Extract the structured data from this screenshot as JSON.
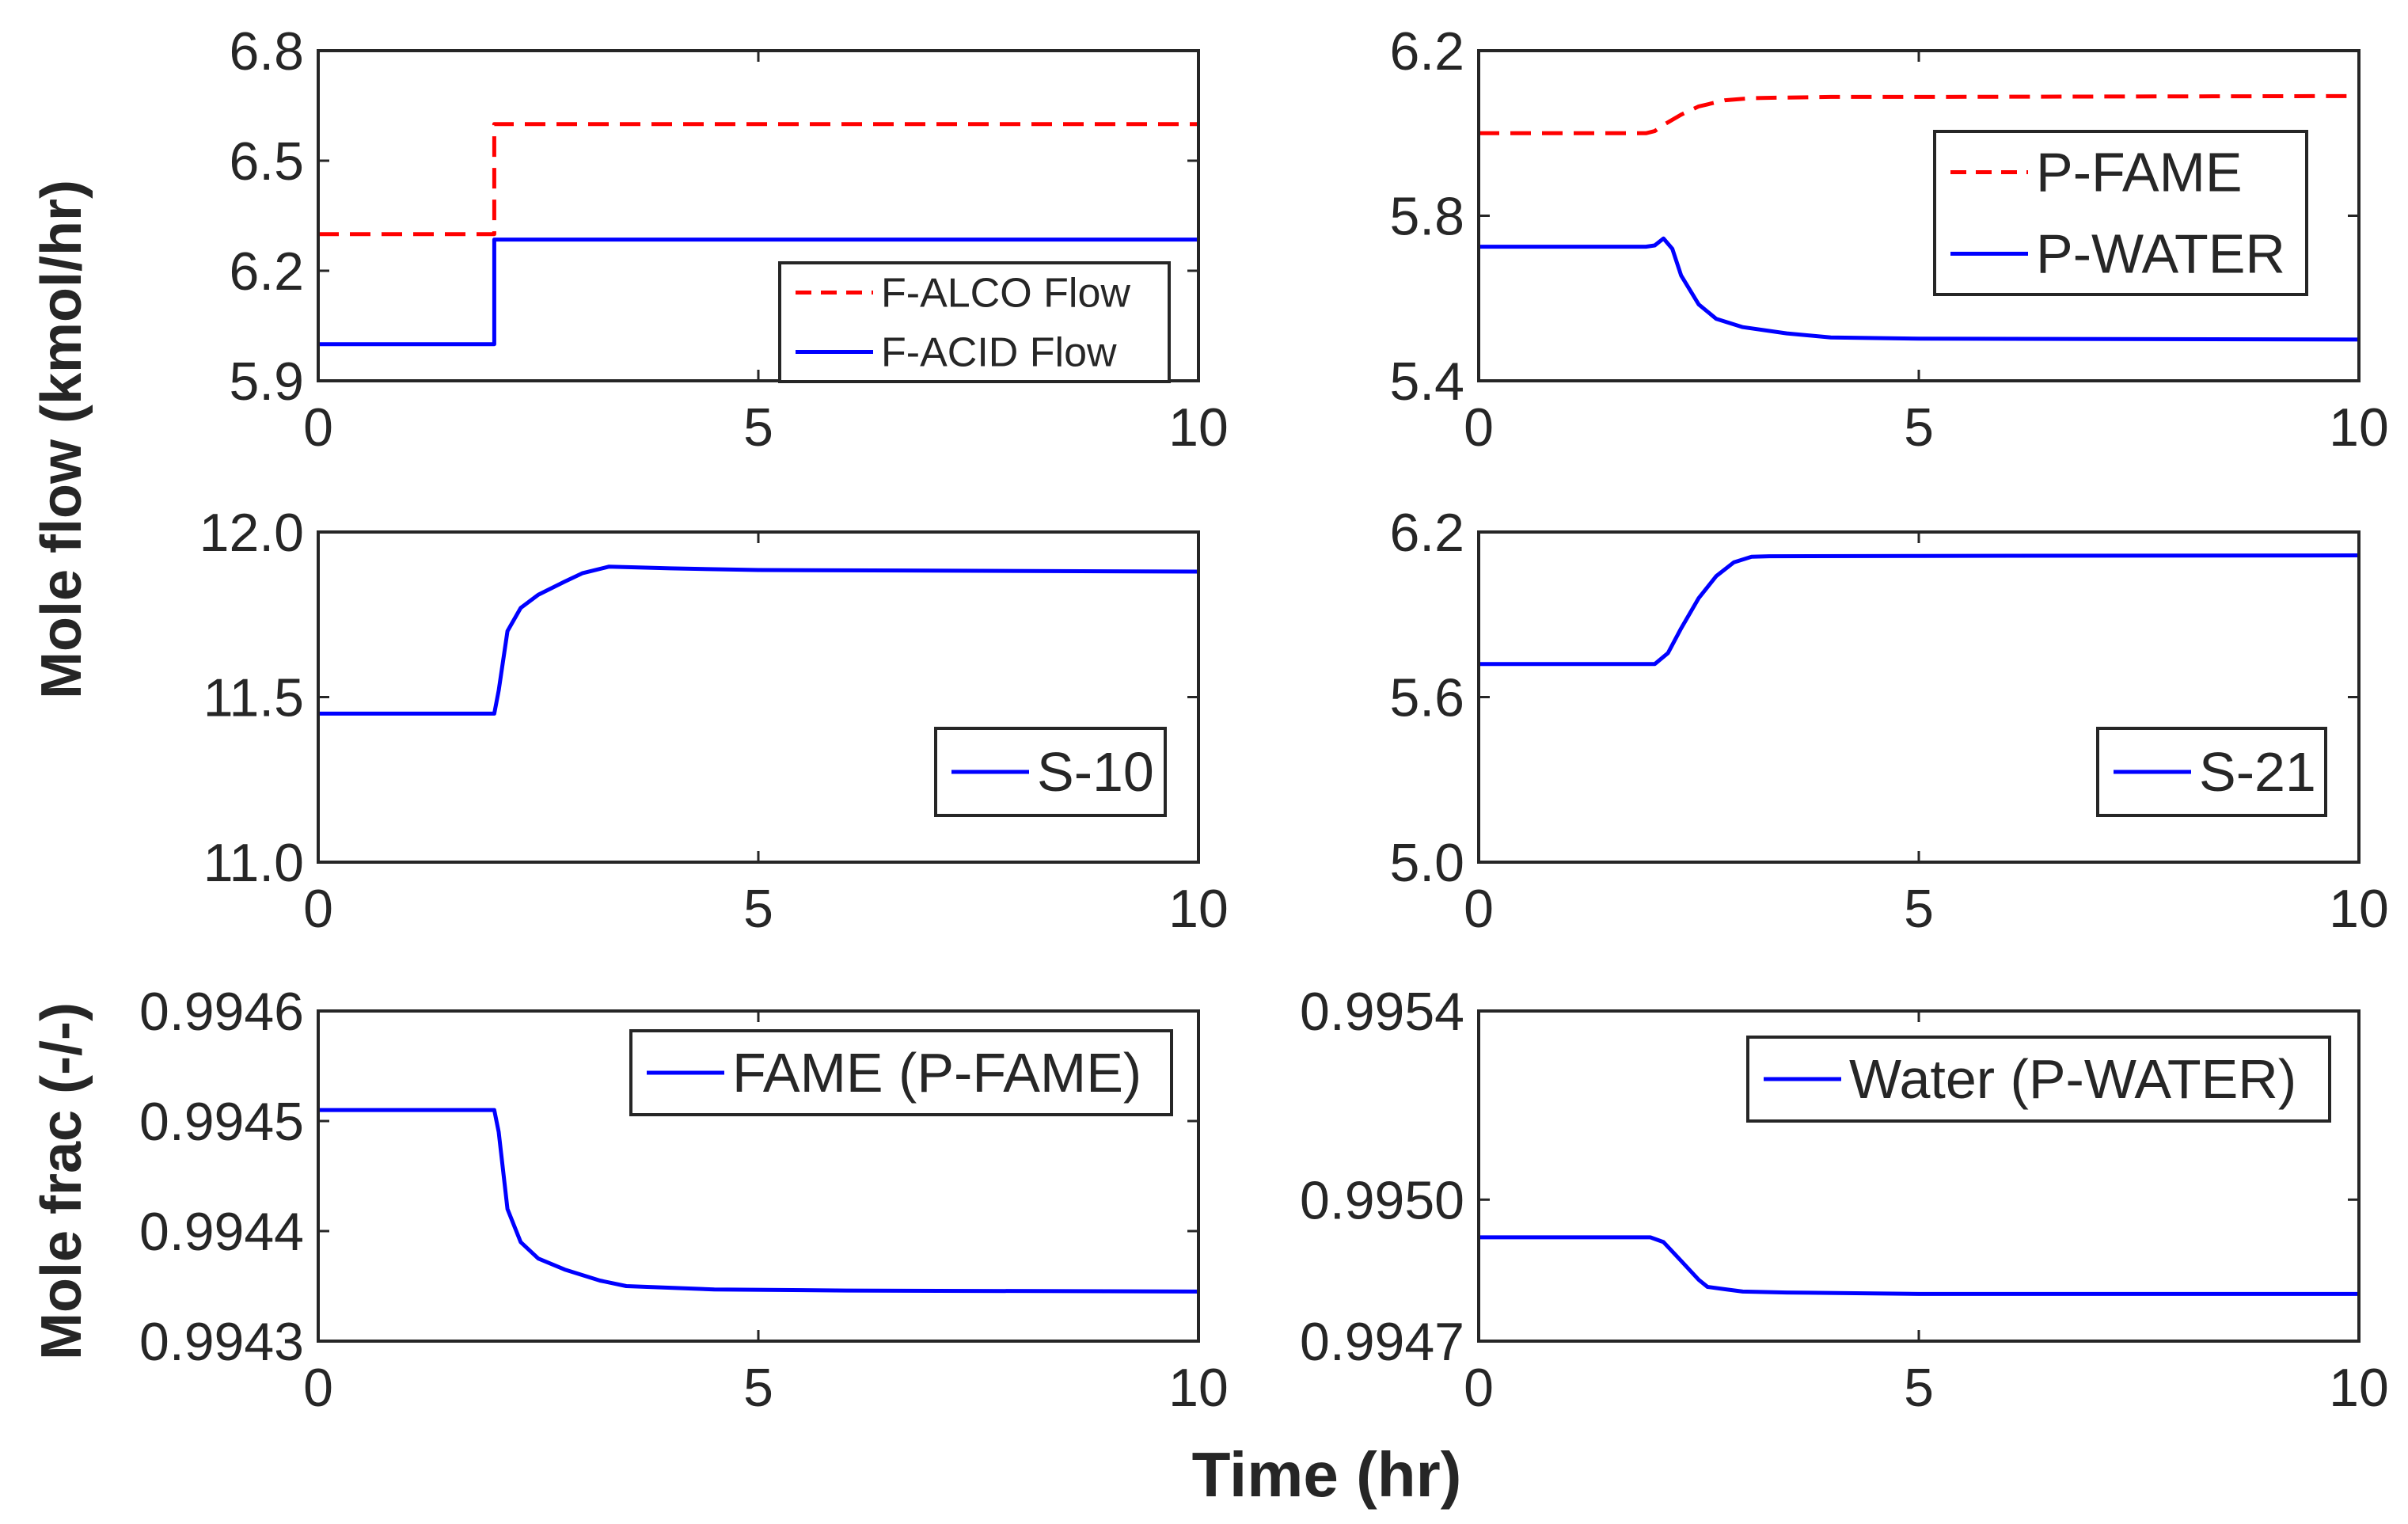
{
  "figure": {
    "ylabel_flow": "Mole flow (kmol/hr)",
    "ylabel_frac": "Mole frac (-/-)",
    "xlabel": "Time (hr)"
  },
  "colors": {
    "red": "#ff0000",
    "blue": "#0000ff",
    "axis": "#262626"
  },
  "chart_data": [
    {
      "type": "line",
      "panel": "top-left",
      "xlim": [
        0,
        10
      ],
      "ylim": [
        5.9,
        6.8
      ],
      "xticks": [
        0,
        5,
        10
      ],
      "xtick_labels": [
        "0",
        "5",
        "10"
      ],
      "yticks": [
        5.9,
        6.2,
        6.5,
        6.8
      ],
      "ytick_labels": [
        "5.9",
        "6.2",
        "6.5",
        "6.8"
      ],
      "legend_location": "bottom-right",
      "series": [
        {
          "name": "F-ALCO Flow",
          "color": "#ff0000",
          "style": "dashed",
          "x": [
            0,
            2,
            2,
            10
          ],
          "y": [
            6.3,
            6.3,
            6.6,
            6.6
          ]
        },
        {
          "name": "F-ACID Flow",
          "color": "#0000ff",
          "style": "solid",
          "x": [
            0,
            2,
            2,
            10
          ],
          "y": [
            6.0,
            6.0,
            6.285,
            6.285
          ]
        }
      ]
    },
    {
      "type": "line",
      "panel": "top-right",
      "xlim": [
        0,
        10
      ],
      "ylim": [
        5.4,
        6.2
      ],
      "xticks": [
        0,
        5,
        10
      ],
      "xtick_labels": [
        "0",
        "5",
        "10"
      ],
      "yticks": [
        5.4,
        5.8,
        6.2
      ],
      "ytick_labels": [
        "5.4",
        "5.8",
        "6.2"
      ],
      "legend_location": "right",
      "series": [
        {
          "name": "P-FAME",
          "color": "#ff0000",
          "style": "dashed",
          "x": [
            0,
            1.9,
            2.0,
            2.1,
            2.3,
            2.5,
            2.8,
            3.1,
            4,
            5,
            10
          ],
          "y": [
            6.0,
            6.0,
            6.005,
            6.02,
            6.045,
            6.065,
            6.08,
            6.085,
            6.088,
            6.088,
            6.09
          ]
        },
        {
          "name": "P-WATER",
          "color": "#0000ff",
          "style": "solid",
          "x": [
            0,
            1.9,
            2.0,
            2.1,
            2.2,
            2.3,
            2.5,
            2.7,
            3.0,
            3.5,
            4.0,
            5.0,
            10
          ],
          "y": [
            5.725,
            5.725,
            5.728,
            5.745,
            5.72,
            5.655,
            5.585,
            5.55,
            5.53,
            5.515,
            5.505,
            5.502,
            5.5
          ]
        }
      ]
    },
    {
      "type": "line",
      "panel": "middle-left",
      "xlim": [
        0,
        10
      ],
      "ylim": [
        11.0,
        12.0
      ],
      "xticks": [
        0,
        5,
        10
      ],
      "xtick_labels": [
        "0",
        "5",
        "10"
      ],
      "yticks": [
        11.0,
        11.5,
        12.0
      ],
      "ytick_labels": [
        "11.0",
        "11.5",
        "12.0"
      ],
      "legend_location": "bottom-right",
      "series": [
        {
          "name": "S-10",
          "color": "#0000ff",
          "style": "solid",
          "x": [
            0,
            2.0,
            2.05,
            2.15,
            2.3,
            2.5,
            2.8,
            3.0,
            3.3,
            3.6,
            4.0,
            5.0,
            10
          ],
          "y": [
            11.45,
            11.45,
            11.52,
            11.7,
            11.77,
            11.81,
            11.85,
            11.875,
            11.895,
            11.893,
            11.89,
            11.885,
            11.88
          ]
        }
      ]
    },
    {
      "type": "line",
      "panel": "middle-right",
      "xlim": [
        0,
        10
      ],
      "ylim": [
        5.0,
        6.2
      ],
      "xticks": [
        0,
        5,
        10
      ],
      "xtick_labels": [
        "0",
        "5",
        "10"
      ],
      "yticks": [
        5.0,
        5.6,
        6.2
      ],
      "ytick_labels": [
        "5.0",
        "5.6",
        "6.2"
      ],
      "legend_location": "bottom-right",
      "series": [
        {
          "name": "S-21",
          "color": "#0000ff",
          "style": "solid",
          "x": [
            0,
            2.0,
            2.15,
            2.3,
            2.5,
            2.7,
            2.9,
            3.1,
            3.3,
            5,
            10
          ],
          "y": [
            5.72,
            5.72,
            5.76,
            5.85,
            5.96,
            6.04,
            6.09,
            6.11,
            6.112,
            6.113,
            6.115
          ]
        }
      ]
    },
    {
      "type": "line",
      "panel": "bottom-left",
      "xlim": [
        0,
        10
      ],
      "ylim": [
        0.9943,
        0.9946
      ],
      "xticks": [
        0,
        5,
        10
      ],
      "xtick_labels": [
        "0",
        "5",
        "10"
      ],
      "yticks": [
        0.9943,
        0.9944,
        0.9945,
        0.9946
      ],
      "ytick_labels": [
        "0.9943",
        "0.9944",
        "0.9945",
        "0.9946"
      ],
      "legend_location": "top-right",
      "series": [
        {
          "name": "FAME (P-FAME)",
          "color": "#0000ff",
          "style": "solid",
          "x": [
            0,
            2.0,
            2.05,
            2.15,
            2.3,
            2.5,
            2.8,
            3.2,
            3.5,
            4.5,
            6,
            10
          ],
          "y": [
            0.99451,
            0.99451,
            0.99449,
            0.99442,
            0.99439,
            0.994375,
            0.994365,
            0.994355,
            0.99435,
            0.994347,
            0.994346,
            0.994345
          ]
        }
      ]
    },
    {
      "type": "line",
      "panel": "bottom-right",
      "xlim": [
        0,
        10
      ],
      "ylim": [
        0.9947,
        0.9954
      ],
      "xticks": [
        0,
        5,
        10
      ],
      "xtick_labels": [
        "0",
        "5",
        "10"
      ],
      "yticks": [
        0.9947,
        0.995,
        0.9954
      ],
      "ytick_labels": [
        "0.9947",
        "0.9950",
        "0.9954"
      ],
      "legend_location": "top-right",
      "series": [
        {
          "name": "Water (P-WATER)",
          "color": "#0000ff",
          "style": "solid",
          "x": [
            0,
            1.95,
            2.1,
            2.3,
            2.5,
            2.6,
            2.8,
            3.0,
            3.5,
            5,
            10
          ],
          "y": [
            0.99492,
            0.99492,
            0.99491,
            0.99487,
            0.99483,
            0.994815,
            0.99481,
            0.994805,
            0.994803,
            0.9948,
            0.9948
          ]
        }
      ]
    }
  ]
}
